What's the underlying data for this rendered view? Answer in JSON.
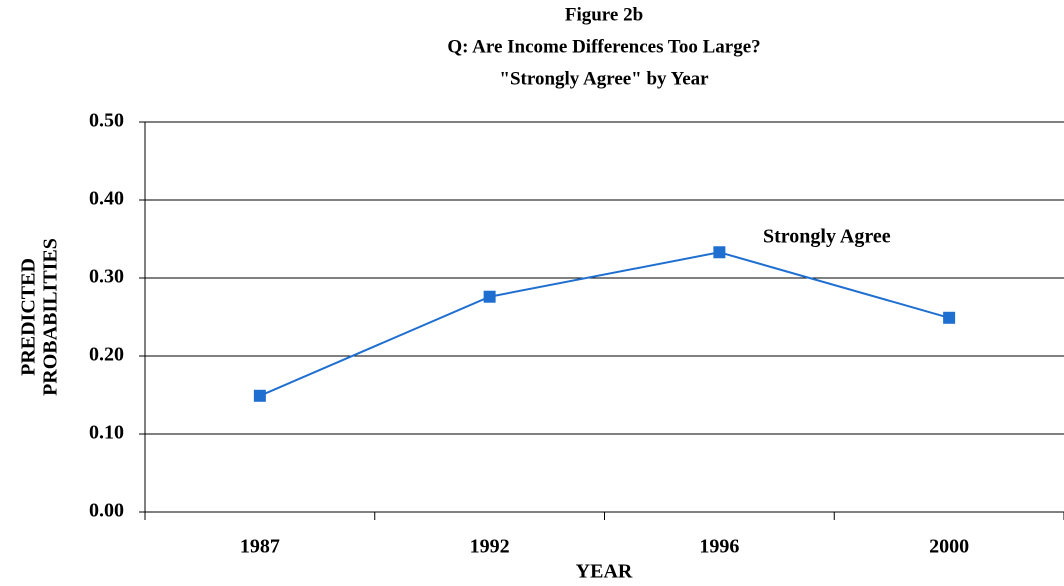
{
  "chart_data": {
    "type": "line",
    "title": [
      "Figure 2b",
      "Q: Are Income Differences Too Large?",
      "\"Strongly Agree\" by Year"
    ],
    "x_label": "YEAR",
    "y_label": [
      "PREDICTED",
      "PROBABILITIES"
    ],
    "categories": [
      "1987",
      "1992",
      "1996",
      "2000"
    ],
    "series": [
      {
        "name": "Strongly Agree",
        "color": "#1f6fd0",
        "values": [
          0.149,
          0.276,
          0.333,
          0.249
        ]
      }
    ],
    "ylim": [
      0,
      0.5
    ],
    "yticks": [
      {
        "value": 0,
        "label": "0.00"
      },
      {
        "value": 0.1,
        "label": "0.10"
      },
      {
        "value": 0.2,
        "label": "0.20"
      },
      {
        "value": 0.3,
        "label": "0.30"
      },
      {
        "value": 0.4,
        "label": "0.40"
      },
      {
        "value": 0.5,
        "label": "0.50"
      }
    ],
    "grid": true
  }
}
